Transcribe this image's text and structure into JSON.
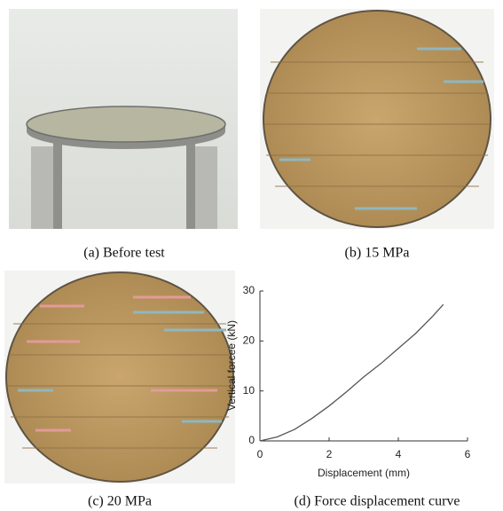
{
  "panels": [
    {
      "caption": "(a) Before test"
    },
    {
      "caption": "(b) 15 MPa"
    },
    {
      "caption": "(c) 20 MPa"
    },
    {
      "caption": "(d) Force displacement curve"
    }
  ],
  "chart_data": {
    "type": "line",
    "x_label": "Displacement (mm)",
    "y_label": "Vertical forcee (kN)",
    "x": [
      0,
      0.5,
      1,
      1.5,
      2,
      2.5,
      3,
      3.5,
      4,
      4.5,
      5,
      5.3
    ],
    "values": [
      0,
      0.8,
      2.3,
      4.5,
      7,
      9.8,
      12.8,
      15.5,
      18.5,
      21.5,
      25,
      27.3
    ],
    "color": "#555555",
    "xlim": [
      0,
      6
    ],
    "xticks": [
      0,
      2,
      4,
      6
    ],
    "ylim": [
      0,
      30
    ],
    "yticks": [
      0,
      10,
      20,
      30
    ]
  }
}
